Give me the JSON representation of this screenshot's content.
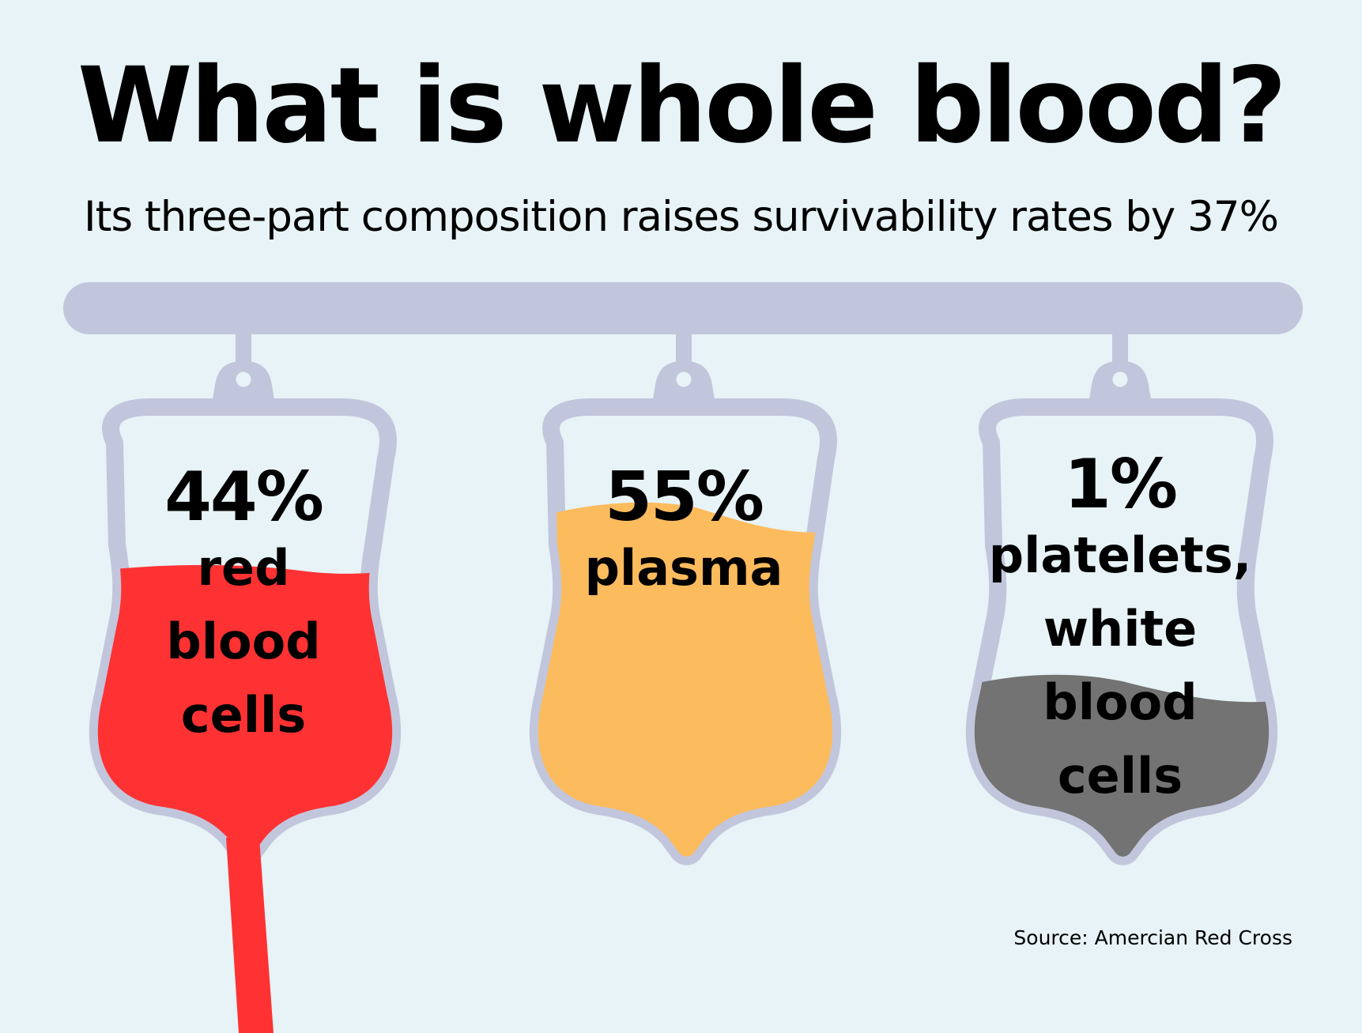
{
  "title": "What is whole blood?",
  "subtitle": "Its three-part composition raises survivability rates by 37%",
  "bags": [
    {
      "percent": "44%",
      "label_lines": [
        "red",
        "blood",
        "cells"
      ],
      "fill_color": "#fe3233",
      "fill_level": 0.44
    },
    {
      "percent": "55%",
      "label_lines": [
        "plasma"
      ],
      "fill_color": "#fcbb5d",
      "fill_level": 0.55
    },
    {
      "percent": "1%",
      "label_lines": [
        "platelets,",
        "white",
        "blood",
        "cells"
      ],
      "fill_color": "#737373",
      "fill_level": 0.01
    }
  ],
  "colors": {
    "background": "#e7f3f6",
    "bag_outline": "#c2c6dc",
    "bag_inside": "#e7f3f6"
  },
  "source": "Source: Amercian Red Cross"
}
